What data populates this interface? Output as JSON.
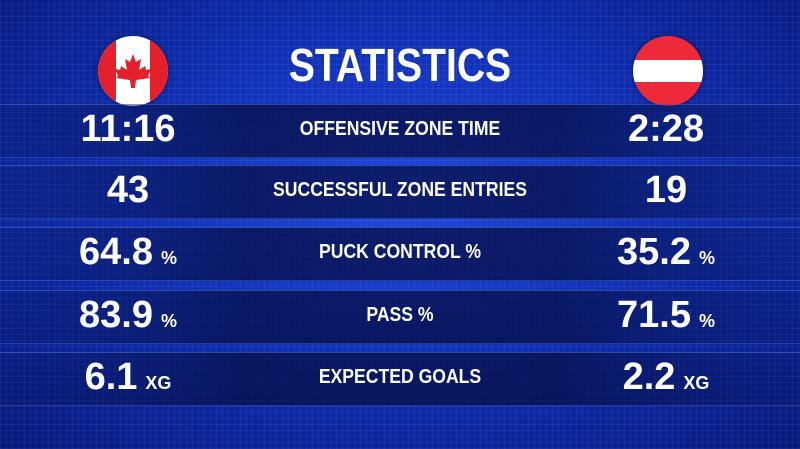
{
  "header": {
    "title": "STATISTICS"
  },
  "rows": [
    {
      "left": "11:16",
      "label": "OFFENSIVE ZONE TIME",
      "right": "2:28"
    },
    {
      "left": 43,
      "label": "SUCCESSFUL ZONE ENTRIES",
      "right": 19
    },
    {
      "left": 64.8,
      "left_unit": "%",
      "label": "PUCK CONTROL %",
      "right": 35.2,
      "right_unit": "%"
    },
    {
      "left": 83.9,
      "left_unit": "%",
      "label": "PASS %",
      "right": 71.5,
      "right_unit": "%"
    },
    {
      "left": 6.1,
      "left_unit": "XG",
      "label": "EXPECTED GOALS",
      "right": 2.2,
      "right_unit": "XG"
    }
  ]
}
